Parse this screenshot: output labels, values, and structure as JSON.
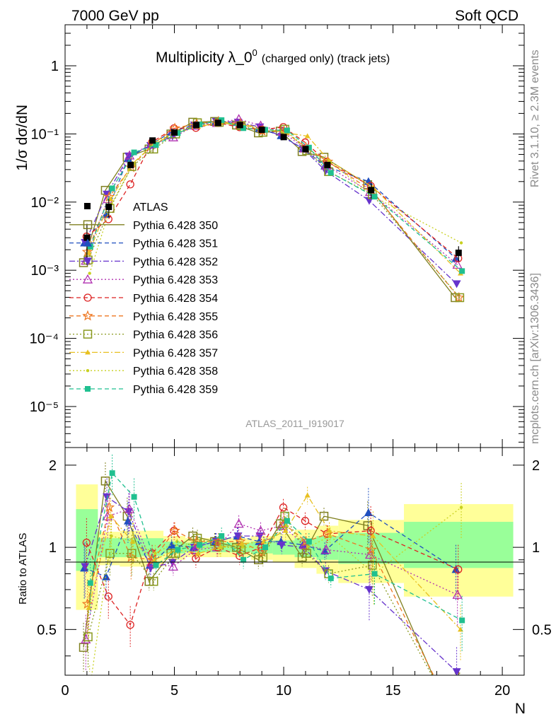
{
  "header": {
    "left": "7000 GeV pp",
    "right": "Soft QCD"
  },
  "side": {
    "rivet": "Rivet 3.1.10, ≥ 2.3M events",
    "mcplots": "mcplots.cern.ch [arXiv:1306.3436]"
  },
  "chart_data": [
    {
      "type": "scatter",
      "title": "Multiplicity λ_0",
      "title_sup": "0",
      "title_small": "(charged only) (track jets)",
      "ylabel": "1/σ dσ/dN",
      "yscale": "log",
      "ylim": [
        2.5e-06,
        4
      ],
      "xlim": [
        0,
        21
      ],
      "analysis_tag": "ATLAS_2011_I919017",
      "legend_position": "left-middle",
      "ytick_labels": [
        "10⁻⁵",
        "10⁻⁴",
        "10⁻³",
        "10⁻²",
        "10⁻¹",
        "1"
      ],
      "data": {
        "name": "ATLAS",
        "x": [
          1,
          2,
          3,
          4,
          5,
          6,
          7,
          8,
          9,
          10,
          11,
          12,
          14,
          18
        ],
        "y": [
          0.003,
          0.0085,
          0.035,
          0.08,
          0.105,
          0.135,
          0.145,
          0.135,
          0.115,
          0.09,
          0.06,
          0.035,
          0.015,
          0.0018
        ]
      },
      "series": [
        {
          "name": "Pythia 6.428 350",
          "color": "#808020",
          "marker": "open-square",
          "dash": "solid",
          "ratio": [
            0.43,
            1.75,
            1.3,
            0.75,
            0.95,
            1.1,
            1.05,
            1.0,
            0.9,
            1.22,
            0.92,
            1.3,
            1.2,
            0.22
          ]
        },
        {
          "name": "Pythia 6.428 351",
          "color": "#1f4fbf",
          "marker": "filled-triangle-up",
          "dash": "dashed",
          "ratio": [
            0.84,
            0.78,
            1.25,
            0.86,
            1.02,
            1.0,
            1.05,
            1.1,
            1.05,
            1.05,
            1.02,
            0.97,
            1.34,
            0.83
          ]
        },
        {
          "name": "Pythia 6.428 352",
          "color": "#6633cc",
          "marker": "filled-triangle-down",
          "dash": "dashdot",
          "ratio": [
            0.85,
            1.53,
            1.35,
            0.84,
            0.88,
            1.0,
            1.05,
            1.1,
            1.1,
            1.02,
            1.0,
            0.82,
            0.7,
            0.35
          ]
        },
        {
          "name": "Pythia 6.428 353",
          "color": "#b030b0",
          "marker": "open-triangle-up",
          "dash": "dotted",
          "ratio": [
            0.46,
            1.3,
            1.38,
            0.88,
            0.85,
            0.98,
            1.0,
            1.22,
            1.15,
            1.2,
            1.02,
            0.98,
            0.94,
            0.67
          ]
        },
        {
          "name": "Pythia 6.428 354",
          "color": "#dd2222",
          "marker": "open-circle",
          "dash": "dashed",
          "ratio": [
            1.04,
            0.66,
            0.52,
            0.95,
            1.15,
            0.91,
            1.0,
            0.93,
            1.0,
            1.4,
            1.25,
            1.12,
            1.15,
            0.83
          ]
        },
        {
          "name": "Pythia 6.428 355",
          "color": "#ee7722",
          "marker": "star",
          "dash": "dashed",
          "ratio": [
            0.62,
            1.4,
            0.92,
            0.9,
            1.15,
            1.05,
            1.05,
            1.05,
            0.96,
            1.22,
            1.05,
            1.12,
            0.98,
            0.22
          ]
        },
        {
          "name": "Pythia 6.428 356",
          "color": "#8a9a20",
          "marker": "open-square",
          "dash": "dotted",
          "ratio": [
            0.47,
            0.95,
            0.95,
            0.75,
            0.95,
            1.08,
            1.02,
            0.98,
            0.92,
            1.3,
            0.95,
            0.8,
            0.86,
            0.22
          ]
        },
        {
          "name": "Pythia 6.428 357",
          "color": "#e8c020",
          "marker": "tri-dot",
          "dash": "dashdot",
          "ratio": [
            0.6,
            1.3,
            1.05,
            0.9,
            0.98,
            0.95,
            1.0,
            1.03,
            1.05,
            1.15,
            1.55,
            1.15,
            1.1,
            0.5
          ]
        },
        {
          "name": "Pythia 6.428 358",
          "color": "#c8d020",
          "marker": "small-dot",
          "dash": "dotted",
          "ratio": [
            0.3,
            1.1,
            1.05,
            0.95,
            1.05,
            1.0,
            1.0,
            1.0,
            1.0,
            1.2,
            1.0,
            1.1,
            0.8,
            1.4
          ]
        },
        {
          "name": "Pythia 6.428 359",
          "color": "#20c090",
          "marker": "filled-square",
          "dash": "dashed",
          "ratio": [
            0.74,
            1.87,
            1.53,
            0.86,
            0.98,
            1.02,
            1.1,
            0.9,
            1.0,
            1.25,
            1.05,
            0.77,
            0.8,
            0.54
          ]
        }
      ]
    },
    {
      "type": "scatter",
      "ylabel": "Ratio to ATLAS",
      "xlabel": "N",
      "xlim": [
        0,
        21
      ],
      "ylim": [
        0.34,
        2.32
      ],
      "ytick_labels": [
        "0.5",
        "1",
        "2"
      ],
      "xtick_labels": [
        "0",
        "5",
        "10",
        "15",
        "20"
      ],
      "bands": {
        "edges": [
          0.5,
          1.5,
          2.5,
          3.5,
          4.5,
          5.5,
          6.5,
          7.5,
          8.5,
          9.5,
          10.5,
          11.5,
          12.5,
          15.5,
          20.5
        ],
        "inner": [
          [
            0.82,
            1.38
          ],
          [
            0.92,
            1.08
          ],
          [
            0.92,
            1.08
          ],
          [
            0.93,
            1.08
          ],
          [
            0.95,
            1.05
          ],
          [
            0.96,
            1.04
          ],
          [
            0.96,
            1.04
          ],
          [
            0.96,
            1.04
          ],
          [
            0.95,
            1.05
          ],
          [
            0.94,
            1.06
          ],
          [
            0.92,
            1.08
          ],
          [
            0.9,
            1.1
          ],
          [
            0.87,
            1.13
          ],
          [
            0.84,
            1.24
          ]
        ],
        "outer": [
          [
            0.59,
            1.7
          ],
          [
            0.86,
            1.14
          ],
          [
            0.85,
            1.15
          ],
          [
            0.85,
            1.15
          ],
          [
            0.9,
            1.1
          ],
          [
            0.92,
            1.08
          ],
          [
            0.92,
            1.08
          ],
          [
            0.92,
            1.08
          ],
          [
            0.9,
            1.1
          ],
          [
            0.88,
            1.12
          ],
          [
            0.84,
            1.16
          ],
          [
            0.8,
            1.2
          ],
          [
            0.74,
            1.26
          ],
          [
            0.66,
            1.44
          ]
        ]
      }
    }
  ]
}
